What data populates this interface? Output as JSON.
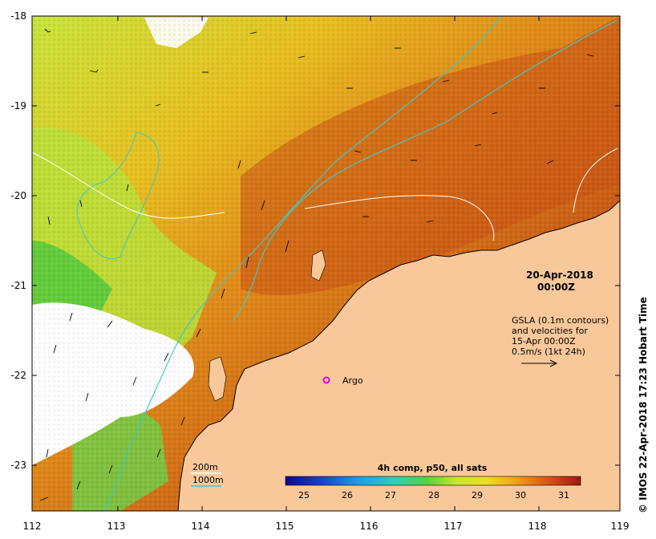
{
  "map": {
    "date": "20-Apr-2018",
    "time": "00:00Z",
    "gsla_info": [
      "GSLA (0.1m contours)",
      "and velocities for",
      "15-Apr 00:00Z",
      "0.5m/s (1kt 24h)"
    ],
    "float_label": "Argo",
    "contour_legend": {
      "label_200": "200m",
      "label_1000": "1000m"
    },
    "credit": "© IMOS 22-Apr-2018 17:23 Hobart Time",
    "lon_ticks": [
      "112",
      "113",
      "114",
      "115",
      "116",
      "117",
      "118",
      "119"
    ],
    "lat_ticks": [
      "-18",
      "-19",
      "-20",
      "-21",
      "-22",
      "-23"
    ]
  },
  "colorbar": {
    "title": "4h comp, p50, all sats",
    "labels": [
      "25",
      "26",
      "27",
      "28",
      "29",
      "30",
      "31"
    ]
  },
  "colors": {
    "land": "#f9c89a",
    "contour_200": "#ffffff",
    "contour_1000": "#3fc8c8",
    "argo": "#e000e0"
  }
}
